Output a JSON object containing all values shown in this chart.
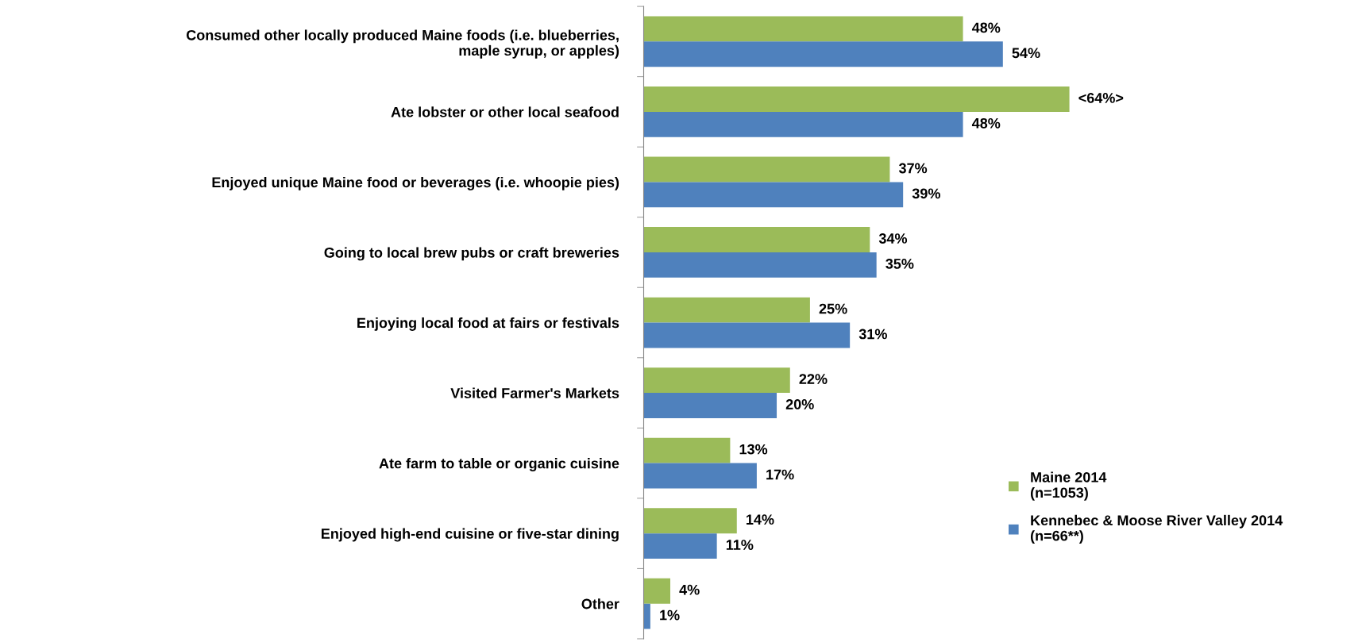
{
  "chart_data": {
    "type": "bar",
    "orientation": "horizontal",
    "categories": [
      "Consumed other locally produced Maine foods (i.e. blueberries,\nmaple syrup, or apples)",
      "Ate lobster or other local seafood",
      "Enjoyed unique Maine food or beverages (i.e. whoopie pies)",
      "Going to local brew pubs or craft breweries",
      "Enjoying local food at fairs or festivals",
      "Visited Farmer's Markets",
      "Ate farm to table or organic cuisine",
      "Enjoyed high-end cuisine or five-star dining",
      "Other"
    ],
    "series": [
      {
        "name": "Maine 2014\n(n=1053)",
        "color": "#9bbb59",
        "values": [
          48,
          64,
          37,
          34,
          25,
          22,
          13,
          14,
          4
        ],
        "value_labels": [
          "48%",
          "<64%>",
          "37%",
          "34%",
          "25%",
          "22%",
          "13%",
          "14%",
          "4%"
        ]
      },
      {
        "name": "Kennebec & Moose River Valley 2014\n(n=66**)",
        "color": "#4f81bd",
        "values": [
          54,
          48,
          39,
          35,
          31,
          20,
          17,
          11,
          1
        ],
        "value_labels": [
          "54%",
          "48%",
          "39%",
          "35%",
          "31%",
          "20%",
          "17%",
          "11%",
          "1%"
        ]
      }
    ],
    "legend": "bottom right",
    "grid": false
  }
}
